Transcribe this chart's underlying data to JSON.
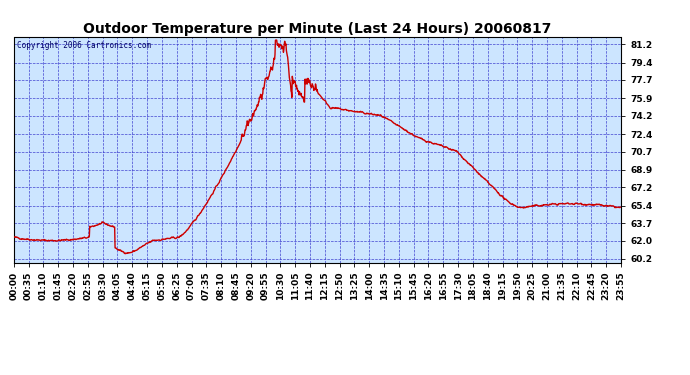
{
  "title": "Outdoor Temperature per Minute (Last 24 Hours) 20060817",
  "copyright": "Copyright 2006 Cartronics.com",
  "line_color": "#cc0000",
  "bg_color": "#cce5ff",
  "outer_bg": "#ffffff",
  "grid_color": "#3333cc",
  "border_color": "#000000",
  "title_color": "#000000",
  "yticks": [
    60.2,
    62.0,
    63.7,
    65.4,
    67.2,
    68.9,
    70.7,
    72.4,
    74.2,
    75.9,
    77.7,
    79.4,
    81.2
  ],
  "ylim": [
    59.85,
    81.85
  ],
  "xtick_labels": [
    "00:00",
    "00:35",
    "01:10",
    "01:45",
    "02:20",
    "02:55",
    "03:30",
    "04:05",
    "04:40",
    "05:15",
    "05:50",
    "06:25",
    "07:00",
    "07:35",
    "08:10",
    "08:45",
    "09:20",
    "09:55",
    "10:30",
    "11:05",
    "11:40",
    "12:15",
    "12:50",
    "13:25",
    "14:00",
    "14:35",
    "15:10",
    "15:45",
    "16:20",
    "16:55",
    "17:30",
    "18:05",
    "18:40",
    "19:15",
    "19:50",
    "20:25",
    "21:00",
    "21:35",
    "22:10",
    "22:45",
    "23:20",
    "23:55"
  ],
  "line_width": 1.0,
  "title_fontsize": 10,
  "tick_fontsize": 6.5,
  "copyright_fontsize": 5.5
}
